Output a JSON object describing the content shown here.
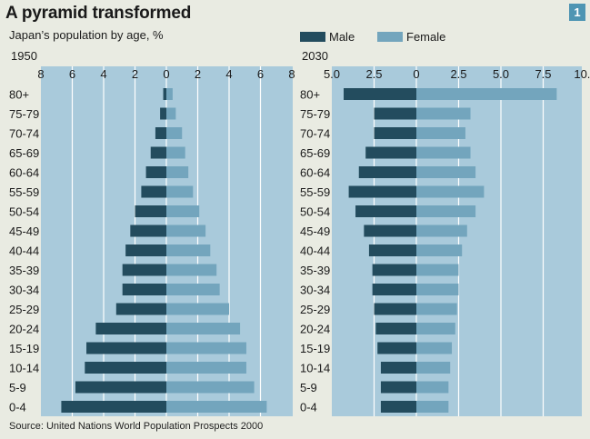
{
  "header": {
    "title": "A pyramid transformed",
    "subtitle": "Japan’s population by age, %",
    "badge": "1"
  },
  "legend": {
    "male": "Male",
    "female": "Female"
  },
  "source": "Source: United Nations World Population Prospects 2000",
  "colors": {
    "male": "#234c5e",
    "female": "#73a5bd",
    "panel": "#a9cadb",
    "grid": "#ffffff"
  },
  "chart_data": [
    {
      "type": "bar",
      "title": "1950",
      "orientation": "horizontal-pyramid",
      "categories": [
        "80+",
        "75-79",
        "70-74",
        "65-69",
        "60-64",
        "55-59",
        "50-54",
        "45-49",
        "40-44",
        "35-39",
        "30-34",
        "25-29",
        "20-24",
        "15-19",
        "10-14",
        "5-9",
        "0-4"
      ],
      "series": [
        {
          "name": "Male",
          "values": [
            0.2,
            0.4,
            0.7,
            1.0,
            1.3,
            1.6,
            2.0,
            2.3,
            2.6,
            2.8,
            2.8,
            3.2,
            4.5,
            5.1,
            5.2,
            5.8,
            6.7
          ]
        },
        {
          "name": "Female",
          "values": [
            0.4,
            0.6,
            1.0,
            1.2,
            1.4,
            1.7,
            2.1,
            2.5,
            2.8,
            3.2,
            3.4,
            4.0,
            4.7,
            5.1,
            5.1,
            5.6,
            6.4
          ]
        }
      ],
      "xlim": [
        -8,
        8
      ],
      "x_ticks": [
        -8,
        -6,
        -4,
        -2,
        0,
        2,
        4,
        6,
        8
      ],
      "x_tick_labels": [
        "8",
        "6",
        "4",
        "2",
        "0",
        "2",
        "4",
        "6",
        "8"
      ],
      "grid": true
    },
    {
      "type": "bar",
      "title": "2030",
      "orientation": "horizontal-pyramid",
      "categories": [
        "80+",
        "75-79",
        "70-74",
        "65-69",
        "60-64",
        "55-59",
        "50-54",
        "45-49",
        "40-44",
        "35-39",
        "30-34",
        "25-29",
        "20-24",
        "15-19",
        "10-14",
        "5-9",
        "0-4"
      ],
      "series": [
        {
          "name": "Male",
          "values": [
            4.3,
            2.5,
            2.5,
            3.0,
            3.4,
            4.0,
            3.6,
            3.1,
            2.8,
            2.6,
            2.6,
            2.5,
            2.4,
            2.3,
            2.1,
            2.1,
            2.1
          ]
        },
        {
          "name": "Female",
          "values": [
            8.3,
            3.2,
            2.9,
            3.2,
            3.5,
            4.0,
            3.5,
            3.0,
            2.7,
            2.5,
            2.5,
            2.4,
            2.3,
            2.1,
            2.0,
            1.9,
            1.9
          ]
        }
      ],
      "xlim": [
        -5,
        10
      ],
      "x_ticks": [
        -5,
        -2.5,
        0,
        2.5,
        5,
        7.5,
        10
      ],
      "x_tick_labels": [
        "5.0",
        "2.5",
        "0",
        "2.5",
        "5.0",
        "7.5",
        "10.0"
      ],
      "grid": true
    }
  ]
}
